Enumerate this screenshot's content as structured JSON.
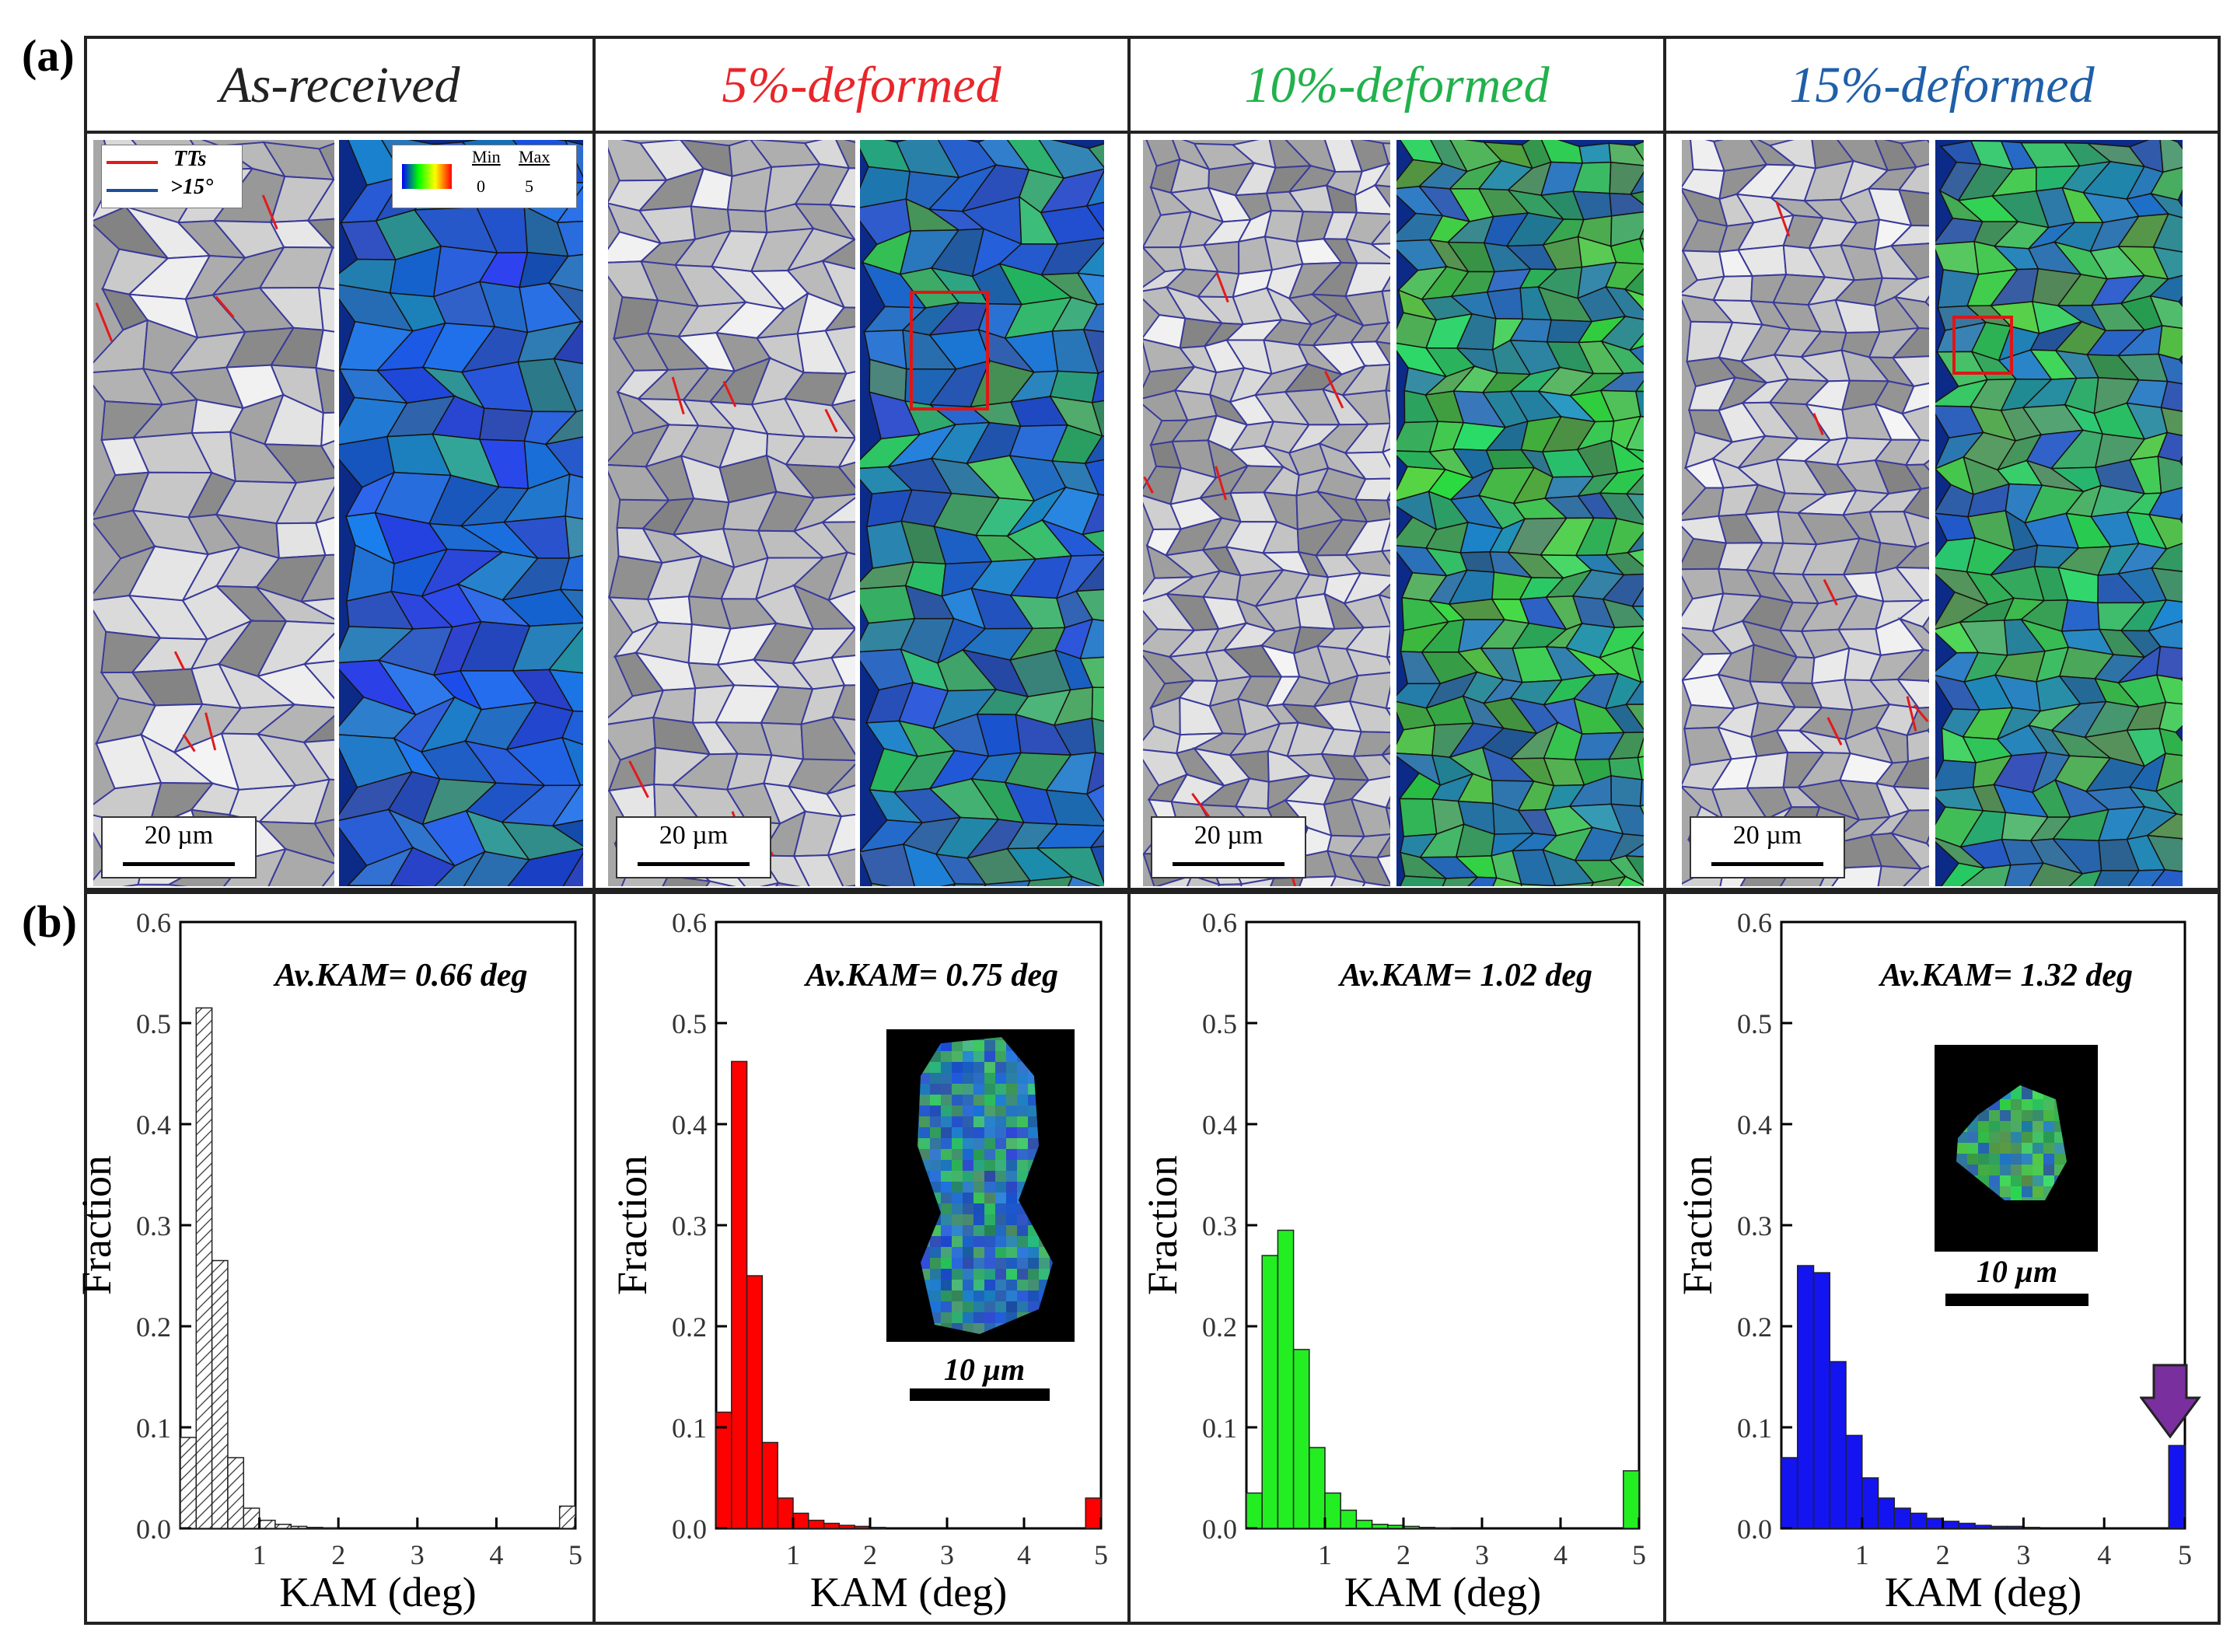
{
  "panel_labels": {
    "a": "(a)",
    "b": "(b)"
  },
  "columns": [
    {
      "title": "As-received",
      "title_color": "#222222",
      "bar_color": "#ffffff",
      "bar_hatch": true,
      "kam_avg": "Av.KAM= 0.66 deg",
      "kam_hue": "blue"
    },
    {
      "title": "5%-deformed",
      "title_color": "#e8262a",
      "bar_color": "#ff0000",
      "bar_hatch": false,
      "kam_avg": "Av.KAM= 0.75 deg",
      "kam_hue": "blue-green"
    },
    {
      "title": "10%-deformed",
      "title_color": "#22b14c",
      "bar_color": "#22ee22",
      "bar_hatch": false,
      "kam_avg": "Av.KAM= 1.02 deg",
      "kam_hue": "green"
    },
    {
      "title": "15%-deformed",
      "title_color": "#1f5fa8",
      "bar_color": "#1414f0",
      "bar_hatch": false,
      "kam_avg": "Av.KAM= 1.32 deg",
      "kam_hue": "green-blue"
    }
  ],
  "map_scale_label": "20 µm",
  "inset_scale_label": "10 µm",
  "legend": {
    "tts": "TTs",
    "hagb": ">15°",
    "tts_color": "#e31a1c",
    "hagb_color": "#1f4e9c"
  },
  "colorbar": {
    "min_label": "Min",
    "max_label": "Max",
    "min_value": "0",
    "max_value": "5"
  },
  "arrow_color": "#7a2f9e",
  "chart_data": [
    {
      "type": "bar",
      "title": "As-received",
      "xlabel": "KAM (deg)",
      "ylabel": "Fraction",
      "xlim": [
        0,
        5
      ],
      "ylim": [
        0,
        0.6
      ],
      "bin_width": 0.2,
      "xticks": [
        1,
        2,
        3,
        4,
        5
      ],
      "yticks": [
        0.0,
        0.1,
        0.2,
        0.3,
        0.4,
        0.5,
        0.6
      ],
      "annotation": "Av.KAM= 0.66 deg",
      "x": [
        0.1,
        0.3,
        0.5,
        0.7,
        0.9,
        1.1,
        1.3,
        1.5,
        1.7,
        1.9,
        4.9
      ],
      "values": [
        0.09,
        0.515,
        0.265,
        0.07,
        0.02,
        0.008,
        0.004,
        0.002,
        0.001,
        0.0005,
        0.022
      ]
    },
    {
      "type": "bar",
      "title": "5%-deformed",
      "xlabel": "KAM (deg)",
      "ylabel": "Fraction",
      "xlim": [
        0,
        5
      ],
      "ylim": [
        0,
        0.6
      ],
      "bin_width": 0.2,
      "xticks": [
        1,
        2,
        3,
        4,
        5
      ],
      "yticks": [
        0.0,
        0.1,
        0.2,
        0.3,
        0.4,
        0.5,
        0.6
      ],
      "annotation": "Av.KAM= 0.75 deg",
      "x": [
        0.1,
        0.3,
        0.5,
        0.7,
        0.9,
        1.1,
        1.3,
        1.5,
        1.7,
        1.9,
        2.1,
        4.9
      ],
      "values": [
        0.115,
        0.462,
        0.25,
        0.085,
        0.03,
        0.015,
        0.008,
        0.005,
        0.003,
        0.002,
        0.001,
        0.03
      ]
    },
    {
      "type": "bar",
      "title": "10%-deformed",
      "xlabel": "KAM (deg)",
      "ylabel": "Fraction",
      "xlim": [
        0,
        5
      ],
      "ylim": [
        0,
        0.6
      ],
      "bin_width": 0.2,
      "xticks": [
        1,
        2,
        3,
        4,
        5
      ],
      "yticks": [
        0.0,
        0.1,
        0.2,
        0.3,
        0.4,
        0.5,
        0.6
      ],
      "annotation": "Av.KAM= 1.02 deg",
      "x": [
        0.1,
        0.3,
        0.5,
        0.7,
        0.9,
        1.1,
        1.3,
        1.5,
        1.7,
        1.9,
        2.1,
        2.3,
        2.5,
        4.9
      ],
      "values": [
        0.035,
        0.27,
        0.295,
        0.177,
        0.08,
        0.035,
        0.018,
        0.008,
        0.004,
        0.003,
        0.002,
        0.001,
        0.0005,
        0.057
      ]
    },
    {
      "type": "bar",
      "title": "15%-deformed",
      "xlabel": "KAM (deg)",
      "ylabel": "Fraction",
      "xlim": [
        0,
        5
      ],
      "ylim": [
        0,
        0.6
      ],
      "bin_width": 0.2,
      "xticks": [
        1,
        2,
        3,
        4,
        5
      ],
      "yticks": [
        0.0,
        0.1,
        0.2,
        0.3,
        0.4,
        0.5,
        0.6
      ],
      "annotation": "Av.KAM= 1.32 deg",
      "x": [
        0.1,
        0.3,
        0.5,
        0.7,
        0.9,
        1.1,
        1.3,
        1.5,
        1.7,
        1.9,
        2.1,
        2.3,
        2.5,
        2.7,
        2.9,
        3.1,
        4.9
      ],
      "values": [
        0.07,
        0.26,
        0.253,
        0.165,
        0.092,
        0.05,
        0.03,
        0.02,
        0.015,
        0.01,
        0.007,
        0.005,
        0.003,
        0.002,
        0.002,
        0.001,
        0.082
      ]
    }
  ]
}
